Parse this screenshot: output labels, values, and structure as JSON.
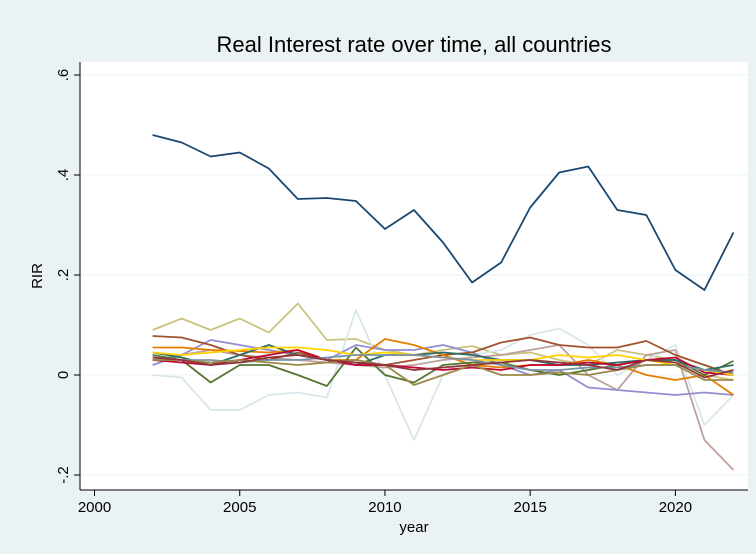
{
  "chart_data": {
    "type": "line",
    "title": "Real Interest rate over time, all countries",
    "x_label": "year",
    "y_label": "RIR",
    "x": [
      2002,
      2003,
      2004,
      2005,
      2006,
      2007,
      2008,
      2009,
      2010,
      2011,
      2012,
      2013,
      2014,
      2015,
      2016,
      2017,
      2018,
      2019,
      2020,
      2021,
      2022
    ],
    "xlim": [
      1999.5,
      2022.5
    ],
    "xticks": [
      2000,
      2005,
      2010,
      2015,
      2020
    ],
    "ylim": [
      -0.23,
      0.626
    ],
    "yticks": [
      {
        "value": -0.2,
        "label": "-.2"
      },
      0,
      {
        "value": 0.2,
        "label": ".2"
      },
      {
        "value": 0.4,
        "label": ".4"
      },
      {
        "value": 0.6,
        "label": ".6"
      }
    ],
    "grid": true,
    "series": [
      {
        "color": "#cac27e",
        "values": [
          0.09,
          0.113,
          0.09,
          0.113,
          0.085,
          0.143,
          0.07,
          0.072,
          0.05,
          0.04,
          0.05,
          0.058,
          0.04,
          0.045,
          0.03,
          0.02,
          0.05,
          0.04,
          0.03,
          0.0,
          -0.01
        ]
      },
      {
        "color": "#d9e6eb",
        "values": [
          0.0,
          -0.005,
          -0.07,
          -0.07,
          -0.04,
          -0.035,
          -0.045,
          0.13,
          0.0,
          -0.13,
          0.0,
          0.04,
          0.05,
          0.08,
          0.093,
          0.06,
          0.0,
          0.03,
          0.06,
          -0.1,
          -0.04
        ]
      },
      {
        "color": "#bfa19c",
        "values": [
          0.03,
          0.04,
          0.05,
          0.04,
          0.035,
          0.03,
          0.025,
          0.02,
          0.015,
          0.02,
          0.03,
          0.035,
          0.04,
          0.05,
          0.06,
          0.0,
          -0.03,
          0.04,
          0.05,
          -0.13,
          -0.19
        ]
      },
      {
        "color": "#938dd2",
        "values": [
          0.02,
          0.04,
          0.07,
          0.06,
          0.05,
          0.04,
          0.03,
          0.06,
          0.05,
          0.05,
          0.06,
          0.045,
          0.02,
          0.0,
          0.01,
          -0.025,
          -0.03,
          -0.035,
          -0.04,
          -0.035,
          -0.04
        ]
      },
      {
        "color": "#a0522d",
        "values": [
          0.078,
          0.075,
          0.06,
          0.04,
          0.03,
          0.045,
          0.03,
          0.02,
          0.02,
          0.03,
          0.04,
          0.045,
          0.065,
          0.075,
          0.06,
          0.055,
          0.055,
          0.068,
          0.04,
          0.02,
          0.0
        ]
      },
      {
        "color": "#e37e00",
        "values": [
          0.055,
          0.055,
          0.05,
          0.048,
          0.045,
          0.05,
          0.03,
          0.03,
          0.072,
          0.06,
          0.04,
          0.02,
          0.015,
          0.02,
          0.02,
          0.03,
          0.02,
          0.0,
          -0.01,
          0.0,
          -0.04
        ]
      },
      {
        "color": "#55752f",
        "values": [
          0.04,
          0.03,
          -0.015,
          0.02,
          0.02,
          0.0,
          -0.022,
          0.055,
          0.0,
          -0.015,
          0.02,
          0.025,
          0.025,
          0.01,
          0.0,
          0.01,
          0.02,
          0.03,
          0.03,
          0.0,
          0.028
        ]
      },
      {
        "color": "#2d6d66",
        "values": [
          0.045,
          0.035,
          0.02,
          0.04,
          0.06,
          0.04,
          0.03,
          0.02,
          0.04,
          0.04,
          0.045,
          0.04,
          0.03,
          0.03,
          0.02,
          0.02,
          0.025,
          0.03,
          0.03,
          0.01,
          0.02
        ]
      },
      {
        "color": "#c10534",
        "values": [
          0.03,
          0.025,
          0.02,
          0.03,
          0.04,
          0.05,
          0.03,
          0.02,
          0.02,
          0.015,
          0.01,
          0.015,
          0.01,
          0.02,
          0.02,
          0.025,
          0.02,
          0.03,
          0.035,
          0.005,
          0.0
        ]
      },
      {
        "color": "#ffd200",
        "values": [
          0.045,
          0.04,
          0.045,
          0.05,
          0.055,
          0.055,
          0.05,
          0.04,
          0.045,
          0.04,
          0.035,
          0.03,
          0.03,
          0.03,
          0.04,
          0.035,
          0.04,
          0.03,
          0.02,
          0.01,
          0.0
        ]
      },
      {
        "color": "#7b92a8",
        "values": [
          0.035,
          0.03,
          0.03,
          0.025,
          0.03,
          0.03,
          0.035,
          0.04,
          0.04,
          0.04,
          0.035,
          0.03,
          0.02,
          0.01,
          0.01,
          0.015,
          0.015,
          0.02,
          0.02,
          0.01,
          0.005
        ]
      },
      {
        "color": "#9c8847",
        "values": [
          0.03,
          0.03,
          0.025,
          0.03,
          0.025,
          0.02,
          0.025,
          0.03,
          0.02,
          -0.02,
          0.0,
          0.02,
          0.0,
          0.0,
          0.005,
          0.0,
          0.01,
          0.02,
          0.02,
          -0.01,
          -0.01
        ]
      },
      {
        "color": "#90353b",
        "values": [
          0.035,
          0.03,
          0.02,
          0.025,
          0.035,
          0.04,
          0.03,
          0.025,
          0.02,
          0.01,
          0.015,
          0.02,
          0.025,
          0.03,
          0.025,
          0.02,
          0.01,
          0.03,
          0.025,
          -0.005,
          0.01
        ]
      },
      {
        "color": "#1a476f",
        "values": [
          0.48,
          0.465,
          0.437,
          0.445,
          0.413,
          0.352,
          0.354,
          0.348,
          0.292,
          0.33,
          0.265,
          0.185,
          0.225,
          0.335,
          0.405,
          0.417,
          0.33,
          0.32,
          0.21,
          0.17,
          0.285
        ]
      }
    ]
  }
}
